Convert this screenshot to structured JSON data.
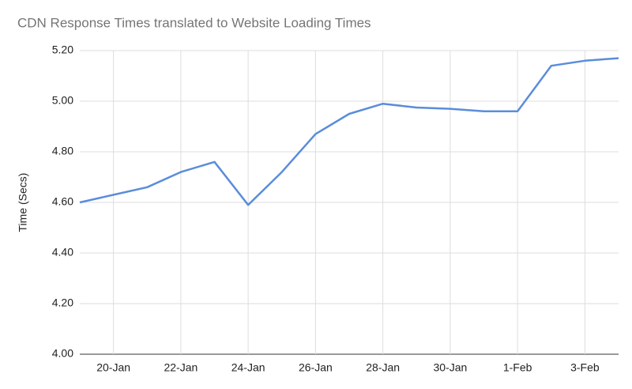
{
  "chart_data": {
    "type": "line",
    "title": "CDN Response Times translated to Website Loading Times",
    "y_label": "Time (Secs)",
    "categories": [
      null,
      "20-Jan",
      null,
      "22-Jan",
      null,
      "24-Jan",
      null,
      "26-Jan",
      null,
      "28-Jan",
      null,
      "30-Jan",
      null,
      "1-Feb",
      null,
      "3-Feb",
      null
    ],
    "series": [
      {
        "name": "Time",
        "color": "#5a8ddb",
        "values": [
          4.6,
          4.63,
          4.66,
          4.72,
          4.76,
          4.59,
          4.72,
          4.87,
          4.95,
          4.99,
          4.975,
          4.97,
          4.96,
          4.96,
          5.14,
          5.16,
          5.17
        ]
      }
    ],
    "ylim": [
      4.0,
      5.2
    ],
    "yticks": [
      {
        "value": 4.0,
        "label": "4.00"
      },
      {
        "value": 4.2,
        "label": "4.20"
      },
      {
        "value": 4.4,
        "label": "4.40"
      },
      {
        "value": 4.6,
        "label": "4.60"
      },
      {
        "value": 4.8,
        "label": "4.80"
      },
      {
        "value": 5.0,
        "label": "5.00"
      },
      {
        "value": 5.2,
        "label": "5.20"
      }
    ],
    "grid": true
  }
}
